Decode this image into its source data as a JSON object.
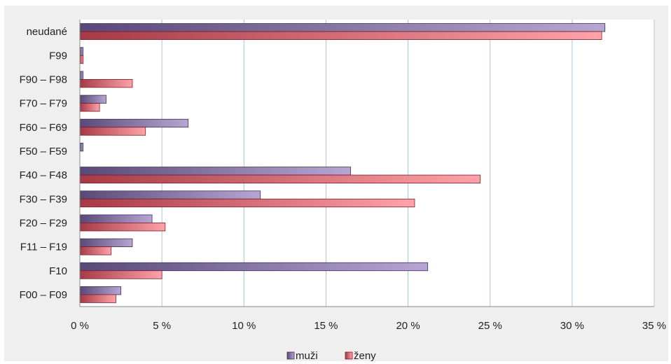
{
  "chart_data": {
    "type": "bar",
    "orientation": "horizontal",
    "categories": [
      "neudané",
      "F99",
      "F90 – F98",
      "F70 – F79",
      "F60 – F69",
      "F50 – F59",
      "F40 – F48",
      "F30 – F39",
      "F20 – F29",
      "F11 – F19",
      "F10",
      "F00 – F09"
    ],
    "series": [
      {
        "name": "muži",
        "values": [
          32.0,
          0.2,
          0.2,
          1.6,
          6.6,
          0.2,
          16.5,
          11.0,
          4.4,
          3.2,
          21.2,
          2.5
        ]
      },
      {
        "name": "ženy",
        "values": [
          31.8,
          0.2,
          3.2,
          1.2,
          4.0,
          0.0,
          24.4,
          20.4,
          5.2,
          1.9,
          5.0,
          2.2
        ]
      }
    ],
    "xlim": [
      0,
      35
    ],
    "x_ticks": [
      "0 %",
      "5 %",
      "10 %",
      "15 %",
      "20 %",
      "25 %",
      "30 %",
      "35 %"
    ],
    "grid": "vertical",
    "legend_position": "bottom",
    "colors": {
      "muži": "#8e7cb0",
      "ženy": "#e57d86",
      "grid": "#a9c6d8"
    }
  }
}
